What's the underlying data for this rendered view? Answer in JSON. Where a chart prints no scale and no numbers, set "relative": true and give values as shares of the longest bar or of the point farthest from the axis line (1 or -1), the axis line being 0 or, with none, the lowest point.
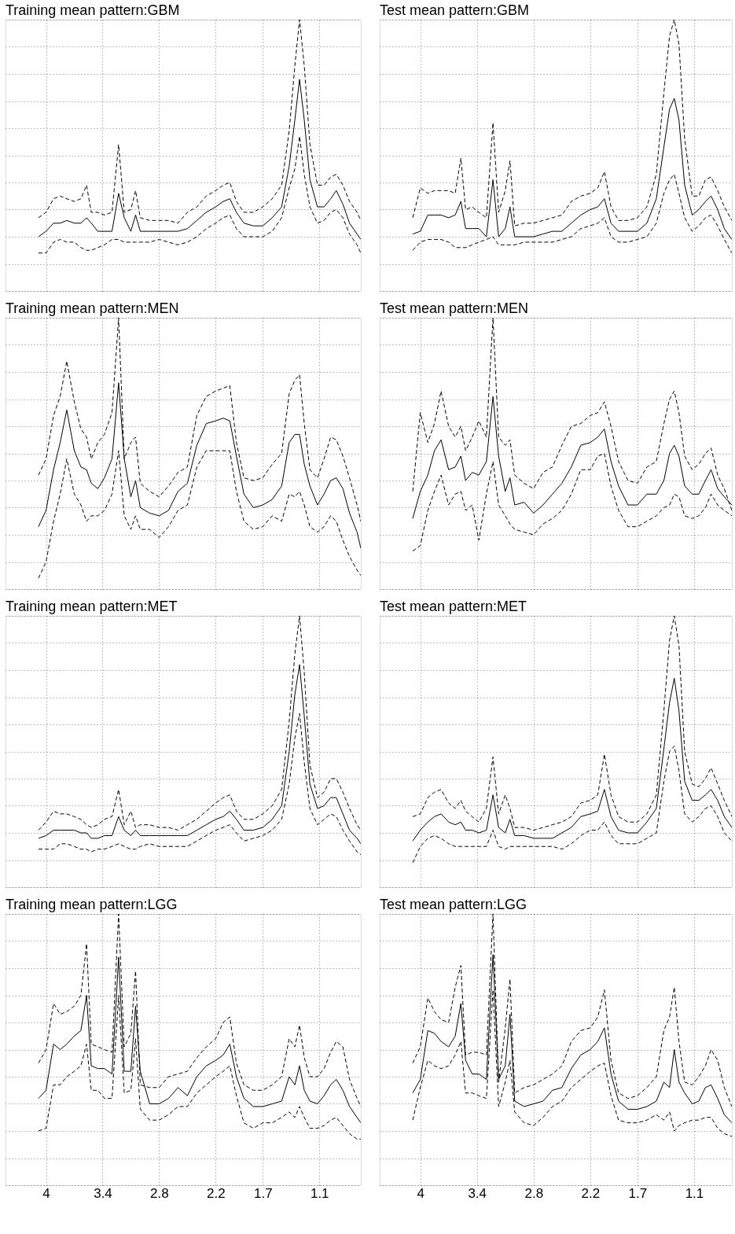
{
  "chart_data": [
    {
      "type": "line",
      "title": "Training mean pattern:GBM",
      "relative": true,
      "grid": true,
      "tick_labels": false,
      "xlim": [
        4.43,
        0.66
      ],
      "xticks": [
        4,
        3.4,
        2.8,
        2.2,
        1.7,
        1.1
      ],
      "x": [
        4.08,
        4.0,
        3.92,
        3.85,
        3.78,
        3.7,
        3.63,
        3.57,
        3.52,
        3.45,
        3.38,
        3.3,
        3.23,
        3.17,
        3.1,
        3.05,
        3.0,
        2.9,
        2.8,
        2.7,
        2.6,
        2.5,
        2.4,
        2.3,
        2.2,
        2.12,
        2.05,
        1.98,
        1.9,
        1.8,
        1.7,
        1.6,
        1.5,
        1.42,
        1.36,
        1.31,
        1.26,
        1.2,
        1.12,
        1.05,
        0.98,
        0.92,
        0.85,
        0.78,
        0.7,
        0.66
      ],
      "series": [
        {
          "color": "#000000",
          "line_style": "solid",
          "values": [
            0.2,
            0.22,
            0.25,
            0.25,
            0.26,
            0.25,
            0.25,
            0.27,
            0.25,
            0.22,
            0.22,
            0.22,
            0.36,
            0.27,
            0.22,
            0.28,
            0.22,
            0.22,
            0.22,
            0.22,
            0.22,
            0.23,
            0.26,
            0.29,
            0.31,
            0.33,
            0.34,
            0.29,
            0.25,
            0.24,
            0.24,
            0.27,
            0.31,
            0.46,
            0.63,
            0.78,
            0.63,
            0.41,
            0.31,
            0.31,
            0.34,
            0.37,
            0.32,
            0.25,
            0.21,
            0.19
          ]
        },
        {
          "color": "#000000",
          "line_style": "dashed",
          "values": [
            0.27,
            0.29,
            0.34,
            0.35,
            0.34,
            0.33,
            0.34,
            0.39,
            0.29,
            0.29,
            0.28,
            0.29,
            0.54,
            0.29,
            0.3,
            0.37,
            0.27,
            0.26,
            0.26,
            0.26,
            0.25,
            0.29,
            0.31,
            0.35,
            0.37,
            0.39,
            0.4,
            0.33,
            0.29,
            0.29,
            0.31,
            0.34,
            0.39,
            0.59,
            0.83,
            1,
            0.83,
            0.54,
            0.39,
            0.39,
            0.42,
            0.43,
            0.39,
            0.33,
            0.29,
            0.26
          ]
        },
        {
          "color": "#000000",
          "line_style": "dashed",
          "values": [
            0.14,
            0.14,
            0.18,
            0.19,
            0.18,
            0.18,
            0.16,
            0.15,
            0.15,
            0.16,
            0.17,
            0.19,
            0.19,
            0.18,
            0.18,
            0.18,
            0.18,
            0.18,
            0.19,
            0.18,
            0.17,
            0.18,
            0.2,
            0.23,
            0.25,
            0.27,
            0.28,
            0.23,
            0.2,
            0.2,
            0.2,
            0.22,
            0.27,
            0.38,
            0.45,
            0.57,
            0.43,
            0.31,
            0.25,
            0.26,
            0.29,
            0.3,
            0.27,
            0.21,
            0.17,
            0.14
          ]
        }
      ]
    },
    {
      "type": "line",
      "title": "Test mean pattern:GBM",
      "relative": true,
      "grid": true,
      "tick_labels": false,
      "xlim": [
        4.43,
        0.7
      ],
      "xticks": [
        4,
        3.4,
        2.8,
        2.2,
        1.7,
        1.1
      ],
      "x": [
        4.08,
        4.0,
        3.92,
        3.85,
        3.78,
        3.7,
        3.63,
        3.57,
        3.52,
        3.45,
        3.38,
        3.3,
        3.23,
        3.17,
        3.1,
        3.05,
        3.0,
        2.9,
        2.8,
        2.7,
        2.6,
        2.5,
        2.4,
        2.3,
        2.2,
        2.12,
        2.05,
        1.98,
        1.9,
        1.8,
        1.7,
        1.6,
        1.5,
        1.42,
        1.36,
        1.31,
        1.26,
        1.2,
        1.12,
        1.05,
        0.98,
        0.92,
        0.85,
        0.78,
        0.7
      ],
      "series": [
        {
          "color": "#000000",
          "line_style": "solid",
          "values": [
            0.21,
            0.22,
            0.28,
            0.28,
            0.28,
            0.27,
            0.28,
            0.33,
            0.23,
            0.23,
            0.23,
            0.2,
            0.41,
            0.2,
            0.23,
            0.31,
            0.2,
            0.2,
            0.2,
            0.21,
            0.22,
            0.22,
            0.25,
            0.28,
            0.3,
            0.31,
            0.34,
            0.25,
            0.22,
            0.22,
            0.22,
            0.25,
            0.34,
            0.53,
            0.67,
            0.71,
            0.63,
            0.39,
            0.28,
            0.3,
            0.33,
            0.35,
            0.3,
            0.23,
            0.19
          ]
        },
        {
          "color": "#000000",
          "line_style": "dashed",
          "values": [
            0.27,
            0.38,
            0.36,
            0.37,
            0.37,
            0.37,
            0.36,
            0.49,
            0.3,
            0.31,
            0.29,
            0.27,
            0.62,
            0.29,
            0.37,
            0.48,
            0.24,
            0.25,
            0.25,
            0.26,
            0.27,
            0.28,
            0.33,
            0.35,
            0.36,
            0.38,
            0.44,
            0.31,
            0.26,
            0.26,
            0.27,
            0.31,
            0.43,
            0.73,
            0.94,
            1,
            0.91,
            0.56,
            0.35,
            0.35,
            0.41,
            0.42,
            0.37,
            0.31,
            0.26
          ]
        },
        {
          "color": "#000000",
          "line_style": "dashed",
          "values": [
            0.15,
            0.18,
            0.19,
            0.19,
            0.19,
            0.18,
            0.16,
            0.16,
            0.16,
            0.17,
            0.18,
            0.19,
            0.2,
            0.17,
            0.17,
            0.17,
            0.17,
            0.18,
            0.18,
            0.18,
            0.18,
            0.19,
            0.2,
            0.23,
            0.24,
            0.25,
            0.27,
            0.2,
            0.18,
            0.18,
            0.19,
            0.2,
            0.25,
            0.36,
            0.41,
            0.43,
            0.36,
            0.27,
            0.22,
            0.24,
            0.27,
            0.28,
            0.24,
            0.19,
            0.14
          ]
        }
      ]
    },
    {
      "type": "line",
      "title": "Training mean pattern:MEN",
      "relative": true,
      "grid": true,
      "tick_labels": false,
      "xlim": [
        4.43,
        0.66
      ],
      "xticks": [
        4,
        3.4,
        2.8,
        2.2,
        1.7,
        1.1
      ],
      "x": [
        4.08,
        4.0,
        3.92,
        3.85,
        3.78,
        3.7,
        3.63,
        3.57,
        3.52,
        3.45,
        3.38,
        3.3,
        3.23,
        3.17,
        3.1,
        3.05,
        3.0,
        2.9,
        2.8,
        2.7,
        2.6,
        2.5,
        2.4,
        2.3,
        2.2,
        2.12,
        2.05,
        1.98,
        1.9,
        1.8,
        1.7,
        1.6,
        1.5,
        1.42,
        1.36,
        1.31,
        1.26,
        1.2,
        1.12,
        1.05,
        0.98,
        0.92,
        0.85,
        0.78,
        0.7,
        0.66
      ],
      "series": [
        {
          "color": "#000000",
          "line_style": "solid",
          "values": [
            0.23,
            0.29,
            0.44,
            0.54,
            0.66,
            0.51,
            0.45,
            0.44,
            0.39,
            0.37,
            0.41,
            0.48,
            0.76,
            0.48,
            0.34,
            0.4,
            0.3,
            0.28,
            0.27,
            0.29,
            0.36,
            0.39,
            0.53,
            0.61,
            0.62,
            0.63,
            0.62,
            0.49,
            0.35,
            0.3,
            0.31,
            0.33,
            0.38,
            0.54,
            0.57,
            0.57,
            0.46,
            0.38,
            0.31,
            0.35,
            0.4,
            0.41,
            0.37,
            0.28,
            0.21,
            0.15
          ]
        },
        {
          "color": "#000000",
          "line_style": "dashed",
          "values": [
            0.42,
            0.48,
            0.64,
            0.71,
            0.84,
            0.69,
            0.59,
            0.56,
            0.48,
            0.54,
            0.57,
            0.65,
            1,
            0.48,
            0.54,
            0.56,
            0.39,
            0.36,
            0.34,
            0.38,
            0.43,
            0.45,
            0.64,
            0.71,
            0.73,
            0.74,
            0.75,
            0.54,
            0.41,
            0.4,
            0.41,
            0.46,
            0.5,
            0.72,
            0.77,
            0.79,
            0.61,
            0.44,
            0.41,
            0.48,
            0.56,
            0.55,
            0.49,
            0.41,
            0.31,
            0.25
          ]
        },
        {
          "color": "#000000",
          "line_style": "dashed",
          "values": [
            0.04,
            0.1,
            0.25,
            0.35,
            0.48,
            0.35,
            0.31,
            0.25,
            0.27,
            0.27,
            0.29,
            0.35,
            0.51,
            0.27,
            0.22,
            0.27,
            0.22,
            0.22,
            0.19,
            0.23,
            0.29,
            0.31,
            0.45,
            0.51,
            0.51,
            0.51,
            0.51,
            0.36,
            0.25,
            0.22,
            0.23,
            0.27,
            0.25,
            0.35,
            0.34,
            0.36,
            0.31,
            0.23,
            0.21,
            0.23,
            0.27,
            0.25,
            0.18,
            0.12,
            0.07,
            0.05
          ]
        }
      ]
    },
    {
      "type": "line",
      "title": "Test mean pattern:MEN",
      "relative": true,
      "grid": true,
      "tick_labels": false,
      "xlim": [
        4.43,
        0.7
      ],
      "xticks": [
        4,
        3.4,
        2.8,
        2.2,
        1.7,
        1.1
      ],
      "x": [
        4.08,
        4.0,
        3.92,
        3.85,
        3.78,
        3.7,
        3.63,
        3.57,
        3.52,
        3.45,
        3.38,
        3.3,
        3.23,
        3.17,
        3.1,
        3.05,
        3.0,
        2.9,
        2.8,
        2.7,
        2.6,
        2.5,
        2.4,
        2.3,
        2.2,
        2.12,
        2.05,
        1.98,
        1.9,
        1.8,
        1.7,
        1.6,
        1.5,
        1.42,
        1.36,
        1.31,
        1.26,
        1.2,
        1.12,
        1.05,
        0.98,
        0.92,
        0.85,
        0.78,
        0.7
      ],
      "series": [
        {
          "color": "#000000",
          "line_style": "solid",
          "values": [
            0.26,
            0.36,
            0.42,
            0.51,
            0.55,
            0.44,
            0.45,
            0.49,
            0.4,
            0.43,
            0.42,
            0.47,
            0.71,
            0.49,
            0.36,
            0.41,
            0.31,
            0.32,
            0.28,
            0.31,
            0.35,
            0.39,
            0.45,
            0.53,
            0.54,
            0.56,
            0.59,
            0.47,
            0.38,
            0.31,
            0.31,
            0.35,
            0.35,
            0.4,
            0.5,
            0.53,
            0.49,
            0.38,
            0.35,
            0.35,
            0.4,
            0.44,
            0.37,
            0.34,
            0.31
          ]
        },
        {
          "color": "#000000",
          "line_style": "dashed",
          "values": [
            0.36,
            0.65,
            0.54,
            0.61,
            0.73,
            0.6,
            0.56,
            0.6,
            0.51,
            0.56,
            0.62,
            0.56,
            1,
            0.56,
            0.53,
            0.55,
            0.42,
            0.39,
            0.37,
            0.43,
            0.45,
            0.53,
            0.6,
            0.61,
            0.64,
            0.65,
            0.69,
            0.6,
            0.47,
            0.4,
            0.39,
            0.45,
            0.47,
            0.61,
            0.7,
            0.73,
            0.65,
            0.49,
            0.44,
            0.46,
            0.5,
            0.52,
            0.42,
            0.37,
            0.29
          ]
        },
        {
          "color": "#000000",
          "line_style": "dashed",
          "values": [
            0.14,
            0.16,
            0.29,
            0.36,
            0.42,
            0.31,
            0.35,
            0.36,
            0.29,
            0.31,
            0.18,
            0.35,
            0.47,
            0.31,
            0.27,
            0.24,
            0.22,
            0.21,
            0.2,
            0.24,
            0.26,
            0.29,
            0.35,
            0.44,
            0.44,
            0.49,
            0.5,
            0.38,
            0.29,
            0.23,
            0.23,
            0.25,
            0.27,
            0.3,
            0.31,
            0.35,
            0.34,
            0.27,
            0.26,
            0.27,
            0.3,
            0.35,
            0.31,
            0.29,
            0.27
          ]
        }
      ]
    },
    {
      "type": "line",
      "title": "Training mean pattern:MET",
      "relative": true,
      "grid": true,
      "tick_labels": false,
      "xlim": [
        4.43,
        0.66
      ],
      "xticks": [
        4,
        3.4,
        2.8,
        2.2,
        1.7,
        1.1
      ],
      "x": [
        4.08,
        4.0,
        3.92,
        3.85,
        3.78,
        3.7,
        3.63,
        3.57,
        3.52,
        3.45,
        3.38,
        3.3,
        3.23,
        3.17,
        3.1,
        3.05,
        3.0,
        2.9,
        2.8,
        2.7,
        2.6,
        2.5,
        2.4,
        2.3,
        2.2,
        2.12,
        2.05,
        1.98,
        1.9,
        1.8,
        1.7,
        1.6,
        1.5,
        1.42,
        1.36,
        1.31,
        1.26,
        1.2,
        1.12,
        1.05,
        0.98,
        0.92,
        0.85,
        0.78,
        0.7,
        0.66
      ],
      "series": [
        {
          "color": "#000000",
          "line_style": "solid",
          "values": [
            0.18,
            0.19,
            0.21,
            0.21,
            0.21,
            0.21,
            0.2,
            0.2,
            0.18,
            0.18,
            0.19,
            0.19,
            0.26,
            0.21,
            0.19,
            0.21,
            0.19,
            0.19,
            0.19,
            0.19,
            0.19,
            0.19,
            0.21,
            0.23,
            0.25,
            0.26,
            0.28,
            0.25,
            0.21,
            0.21,
            0.22,
            0.25,
            0.3,
            0.5,
            0.71,
            0.82,
            0.63,
            0.38,
            0.29,
            0.3,
            0.33,
            0.33,
            0.27,
            0.21,
            0.18,
            0.16
          ]
        },
        {
          "color": "#000000",
          "line_style": "dashed",
          "values": [
            0.21,
            0.24,
            0.28,
            0.27,
            0.27,
            0.26,
            0.25,
            0.23,
            0.22,
            0.23,
            0.25,
            0.26,
            0.36,
            0.23,
            0.28,
            0.22,
            0.23,
            0.23,
            0.22,
            0.22,
            0.21,
            0.23,
            0.25,
            0.28,
            0.31,
            0.33,
            0.34,
            0.28,
            0.25,
            0.25,
            0.27,
            0.3,
            0.36,
            0.61,
            0.86,
            1,
            0.79,
            0.45,
            0.33,
            0.35,
            0.4,
            0.4,
            0.35,
            0.29,
            0.23,
            0.21
          ]
        },
        {
          "color": "#000000",
          "line_style": "dashed",
          "values": [
            0.14,
            0.14,
            0.14,
            0.16,
            0.16,
            0.15,
            0.14,
            0.14,
            0.13,
            0.14,
            0.14,
            0.15,
            0.16,
            0.15,
            0.14,
            0.14,
            0.15,
            0.16,
            0.15,
            0.15,
            0.15,
            0.15,
            0.17,
            0.19,
            0.21,
            0.22,
            0.23,
            0.2,
            0.17,
            0.18,
            0.19,
            0.21,
            0.25,
            0.38,
            0.55,
            0.64,
            0.46,
            0.29,
            0.23,
            0.25,
            0.27,
            0.26,
            0.21,
            0.17,
            0.13,
            0.12
          ]
        }
      ]
    },
    {
      "type": "line",
      "title": "Test mean pattern:MET",
      "relative": true,
      "grid": true,
      "tick_labels": false,
      "xlim": [
        4.43,
        0.7
      ],
      "xticks": [
        4,
        3.4,
        2.8,
        2.2,
        1.7,
        1.1
      ],
      "x": [
        4.08,
        4.0,
        3.92,
        3.85,
        3.78,
        3.7,
        3.63,
        3.57,
        3.52,
        3.45,
        3.38,
        3.3,
        3.23,
        3.17,
        3.1,
        3.05,
        3.0,
        2.9,
        2.8,
        2.7,
        2.6,
        2.5,
        2.4,
        2.3,
        2.2,
        2.12,
        2.05,
        1.98,
        1.9,
        1.8,
        1.7,
        1.6,
        1.5,
        1.42,
        1.36,
        1.31,
        1.26,
        1.2,
        1.12,
        1.05,
        0.98,
        0.92,
        0.85,
        0.78,
        0.7
      ],
      "series": [
        {
          "color": "#000000",
          "line_style": "solid",
          "values": [
            0.17,
            0.21,
            0.24,
            0.26,
            0.27,
            0.24,
            0.23,
            0.24,
            0.21,
            0.21,
            0.2,
            0.21,
            0.34,
            0.22,
            0.2,
            0.25,
            0.19,
            0.19,
            0.18,
            0.18,
            0.18,
            0.2,
            0.22,
            0.26,
            0.27,
            0.28,
            0.36,
            0.26,
            0.21,
            0.2,
            0.2,
            0.24,
            0.29,
            0.51,
            0.68,
            0.77,
            0.65,
            0.39,
            0.32,
            0.32,
            0.34,
            0.36,
            0.32,
            0.26,
            0.22
          ]
        },
        {
          "color": "#000000",
          "line_style": "dashed",
          "values": [
            0.26,
            0.27,
            0.33,
            0.35,
            0.36,
            0.31,
            0.29,
            0.32,
            0.28,
            0.26,
            0.24,
            0.29,
            0.48,
            0.27,
            0.34,
            0.29,
            0.22,
            0.22,
            0.21,
            0.22,
            0.23,
            0.24,
            0.26,
            0.31,
            0.32,
            0.34,
            0.49,
            0.34,
            0.26,
            0.24,
            0.24,
            0.27,
            0.34,
            0.65,
            0.91,
            1,
            0.89,
            0.5,
            0.38,
            0.37,
            0.4,
            0.44,
            0.38,
            0.32,
            0.26
          ]
        },
        {
          "color": "#000000",
          "line_style": "dashed",
          "values": [
            0.09,
            0.15,
            0.18,
            0.19,
            0.18,
            0.16,
            0.15,
            0.15,
            0.15,
            0.15,
            0.15,
            0.15,
            0.21,
            0.15,
            0.14,
            0.15,
            0.15,
            0.15,
            0.15,
            0.15,
            0.15,
            0.14,
            0.16,
            0.19,
            0.21,
            0.21,
            0.24,
            0.19,
            0.16,
            0.16,
            0.16,
            0.18,
            0.2,
            0.39,
            0.5,
            0.52,
            0.43,
            0.27,
            0.24,
            0.26,
            0.29,
            0.3,
            0.26,
            0.2,
            0.17
          ]
        }
      ]
    },
    {
      "type": "line",
      "title": "Training mean pattern:LGG",
      "relative": true,
      "grid": true,
      "tick_labels": "x",
      "xlim": [
        4.43,
        0.66
      ],
      "xticks": [
        4,
        3.4,
        2.8,
        2.2,
        1.7,
        1.1
      ],
      "x": [
        4.08,
        4.0,
        3.92,
        3.85,
        3.78,
        3.7,
        3.63,
        3.57,
        3.52,
        3.45,
        3.38,
        3.3,
        3.23,
        3.17,
        3.1,
        3.05,
        3.0,
        2.9,
        2.8,
        2.7,
        2.6,
        2.5,
        2.4,
        2.3,
        2.2,
        2.12,
        2.05,
        1.98,
        1.9,
        1.8,
        1.7,
        1.6,
        1.5,
        1.42,
        1.36,
        1.31,
        1.26,
        1.2,
        1.12,
        1.05,
        0.98,
        0.92,
        0.85,
        0.78,
        0.7,
        0.66
      ],
      "series": [
        {
          "color": "#000000",
          "line_style": "solid",
          "values": [
            0.32,
            0.35,
            0.52,
            0.5,
            0.52,
            0.55,
            0.57,
            0.7,
            0.44,
            0.43,
            0.43,
            0.41,
            0.84,
            0.42,
            0.42,
            0.66,
            0.42,
            0.3,
            0.3,
            0.32,
            0.36,
            0.33,
            0.4,
            0.44,
            0.46,
            0.48,
            0.52,
            0.4,
            0.32,
            0.29,
            0.29,
            0.3,
            0.31,
            0.4,
            0.37,
            0.44,
            0.35,
            0.31,
            0.3,
            0.33,
            0.37,
            0.39,
            0.35,
            0.29,
            0.25,
            0.23
          ]
        },
        {
          "color": "#000000",
          "line_style": "dashed",
          "values": [
            0.45,
            0.5,
            0.67,
            0.63,
            0.64,
            0.66,
            0.7,
            0.89,
            0.52,
            0.51,
            0.5,
            0.49,
            1,
            0.51,
            0.56,
            0.79,
            0.37,
            0.36,
            0.36,
            0.4,
            0.41,
            0.42,
            0.47,
            0.51,
            0.54,
            0.6,
            0.62,
            0.45,
            0.37,
            0.35,
            0.35,
            0.37,
            0.4,
            0.54,
            0.51,
            0.59,
            0.47,
            0.4,
            0.4,
            0.43,
            0.49,
            0.53,
            0.51,
            0.39,
            0.32,
            0.29
          ]
        },
        {
          "color": "#000000",
          "line_style": "dashed",
          "values": [
            0.2,
            0.21,
            0.37,
            0.37,
            0.4,
            0.42,
            0.44,
            0.52,
            0.35,
            0.35,
            0.32,
            0.32,
            0.7,
            0.34,
            0.35,
            0.54,
            0.28,
            0.24,
            0.24,
            0.26,
            0.29,
            0.29,
            0.34,
            0.37,
            0.4,
            0.42,
            0.44,
            0.33,
            0.23,
            0.21,
            0.23,
            0.23,
            0.25,
            0.27,
            0.25,
            0.29,
            0.25,
            0.21,
            0.21,
            0.22,
            0.24,
            0.25,
            0.22,
            0.19,
            0.17,
            0.17
          ]
        }
      ]
    },
    {
      "type": "line",
      "title": "Test mean pattern:LGG",
      "relative": true,
      "grid": true,
      "tick_labels": "x",
      "xlim": [
        4.43,
        0.7
      ],
      "xticks": [
        4,
        3.4,
        2.8,
        2.2,
        1.7,
        1.1
      ],
      "x": [
        4.08,
        4.0,
        3.92,
        3.85,
        3.78,
        3.7,
        3.63,
        3.57,
        3.52,
        3.45,
        3.38,
        3.3,
        3.23,
        3.17,
        3.1,
        3.05,
        3.0,
        2.9,
        2.8,
        2.7,
        2.6,
        2.5,
        2.4,
        2.3,
        2.2,
        2.12,
        2.05,
        1.98,
        1.9,
        1.8,
        1.7,
        1.6,
        1.5,
        1.42,
        1.36,
        1.31,
        1.26,
        1.2,
        1.12,
        1.05,
        0.98,
        0.92,
        0.85,
        0.78,
        0.7
      ],
      "series": [
        {
          "color": "#000000",
          "line_style": "solid",
          "values": [
            0.34,
            0.39,
            0.57,
            0.56,
            0.53,
            0.51,
            0.55,
            0.67,
            0.46,
            0.41,
            0.41,
            0.39,
            0.85,
            0.39,
            0.44,
            0.63,
            0.31,
            0.29,
            0.3,
            0.31,
            0.35,
            0.36,
            0.43,
            0.48,
            0.5,
            0.53,
            0.58,
            0.41,
            0.31,
            0.28,
            0.28,
            0.29,
            0.31,
            0.38,
            0.36,
            0.5,
            0.38,
            0.34,
            0.3,
            0.31,
            0.36,
            0.37,
            0.32,
            0.26,
            0.23
          ]
        },
        {
          "color": "#000000",
          "line_style": "dashed",
          "values": [
            0.45,
            0.51,
            0.69,
            0.64,
            0.61,
            0.6,
            0.73,
            0.81,
            0.48,
            0.49,
            0.49,
            0.48,
            1,
            0.38,
            0.58,
            0.76,
            0.34,
            0.36,
            0.37,
            0.39,
            0.41,
            0.44,
            0.53,
            0.57,
            0.58,
            0.62,
            0.72,
            0.46,
            0.34,
            0.32,
            0.33,
            0.36,
            0.4,
            0.57,
            0.62,
            0.73,
            0.53,
            0.38,
            0.37,
            0.4,
            0.44,
            0.5,
            0.46,
            0.36,
            0.29
          ]
        },
        {
          "color": "#000000",
          "line_style": "dashed",
          "values": [
            0.24,
            0.36,
            0.46,
            0.44,
            0.43,
            0.44,
            0.48,
            0.53,
            0.34,
            0.34,
            0.33,
            0.32,
            0.72,
            0.29,
            0.38,
            0.46,
            0.27,
            0.23,
            0.22,
            0.25,
            0.29,
            0.31,
            0.36,
            0.39,
            0.42,
            0.44,
            0.45,
            0.33,
            0.24,
            0.23,
            0.23,
            0.24,
            0.26,
            0.24,
            0.27,
            0.2,
            0.22,
            0.23,
            0.24,
            0.24,
            0.25,
            0.25,
            0.21,
            0.19,
            0.18
          ]
        }
      ]
    }
  ]
}
